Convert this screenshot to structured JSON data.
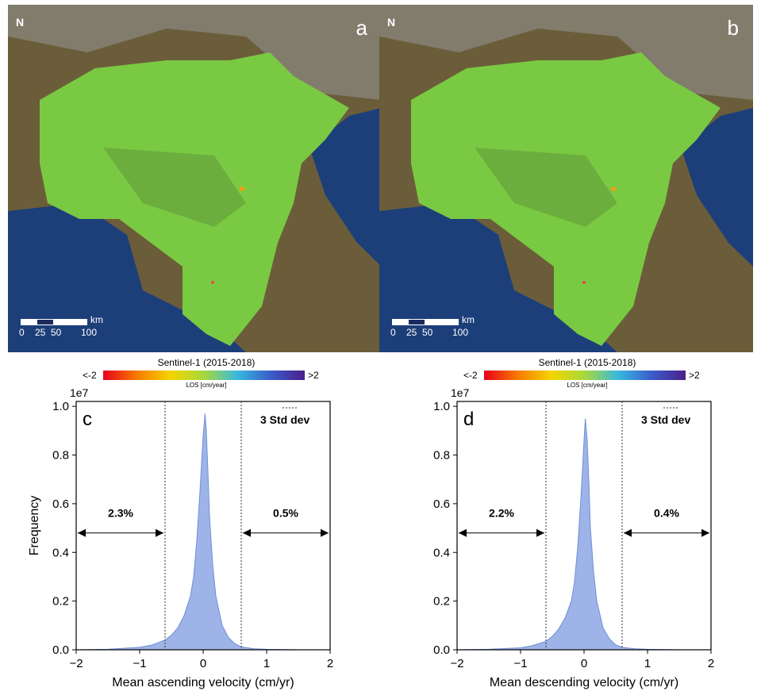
{
  "maps": [
    {
      "letter": "a",
      "north": "N",
      "scale_unit": "km",
      "scale_ticks": [
        "0",
        "25",
        "50",
        "100"
      ],
      "colors": {
        "sea": "#1c3f7a",
        "land": "#6b5d3a",
        "mountain": "#8a8a82",
        "deformation": "#7ac943"
      }
    },
    {
      "letter": "b",
      "north": "N",
      "scale_unit": "km",
      "scale_ticks": [
        "0",
        "25",
        "50",
        "100"
      ],
      "colors": {
        "sea": "#1c3f7a",
        "land": "#6b5d3a",
        "mountain": "#8a8a82",
        "deformation": "#7ac943"
      }
    }
  ],
  "colorbars": [
    {
      "title": "Sentinel-1 (2015-2018)",
      "low": "<-2",
      "high": ">2",
      "unit": "LOS [cm/year]"
    },
    {
      "title": "Sentinel-1 (2015-2018)",
      "low": "<-2",
      "high": ">2",
      "unit": "LOS [cm/year]"
    }
  ],
  "chart_data": [
    {
      "type": "area",
      "panel": "c",
      "multiplier": "1e7",
      "xlabel": "Mean ascending velocity (cm/yr)",
      "ylabel": "Frequency",
      "xlim": [
        -2,
        2
      ],
      "ylim": [
        0,
        1.02
      ],
      "xticks": [
        "-2",
        "-1",
        "0",
        "1",
        "2"
      ],
      "yticks": [
        "0.0",
        "0.2",
        "0.4",
        "0.6",
        "0.8",
        "1.0"
      ],
      "x": [
        -2.0,
        -1.5,
        -1.0,
        -0.8,
        -0.6,
        -0.5,
        -0.4,
        -0.3,
        -0.2,
        -0.15,
        -0.1,
        -0.05,
        0.0,
        0.03,
        0.05,
        0.08,
        0.1,
        0.15,
        0.2,
        0.3,
        0.4,
        0.5,
        0.6,
        0.8,
        1.0,
        1.5,
        2.0
      ],
      "y": [
        0.0,
        0.002,
        0.01,
        0.02,
        0.04,
        0.06,
        0.09,
        0.14,
        0.22,
        0.3,
        0.45,
        0.65,
        0.88,
        0.97,
        0.9,
        0.7,
        0.55,
        0.35,
        0.22,
        0.1,
        0.05,
        0.025,
        0.012,
        0.004,
        0.002,
        0.0,
        0.0
      ],
      "std_lines": [
        -0.6,
        0.6
      ],
      "std_label": "3 Std dev",
      "left_pct": "2.3%",
      "right_pct": "0.5%",
      "arrow_y": 0.48,
      "fill": "#9eb4e8",
      "line": "#6f8fd6"
    },
    {
      "type": "area",
      "panel": "d",
      "multiplier": "1e7",
      "xlabel": "Mean descending velocity (cm/yr)",
      "ylabel": "",
      "xlim": [
        -2,
        2
      ],
      "ylim": [
        0,
        1.02
      ],
      "xticks": [
        "-2",
        "-1",
        "0",
        "1",
        "2"
      ],
      "yticks": [
        "0.0",
        "0.2",
        "0.4",
        "0.6",
        "0.8",
        "1.0"
      ],
      "x": [
        -2.0,
        -1.5,
        -1.0,
        -0.8,
        -0.6,
        -0.5,
        -0.4,
        -0.3,
        -0.2,
        -0.15,
        -0.1,
        -0.05,
        0.0,
        0.02,
        0.05,
        0.08,
        0.1,
        0.15,
        0.2,
        0.3,
        0.4,
        0.5,
        0.6,
        0.8,
        1.0,
        1.5,
        2.0
      ],
      "y": [
        0.0,
        0.002,
        0.008,
        0.018,
        0.035,
        0.055,
        0.085,
        0.13,
        0.2,
        0.28,
        0.42,
        0.62,
        0.86,
        0.95,
        0.86,
        0.66,
        0.5,
        0.32,
        0.2,
        0.09,
        0.045,
        0.02,
        0.01,
        0.004,
        0.002,
        0.0,
        0.0
      ],
      "std_lines": [
        -0.6,
        0.6
      ],
      "std_label": "3 Std dev",
      "left_pct": "2.2%",
      "right_pct": "0.4%",
      "arrow_y": 0.48,
      "fill": "#9eb4e8",
      "line": "#6f8fd6"
    }
  ]
}
